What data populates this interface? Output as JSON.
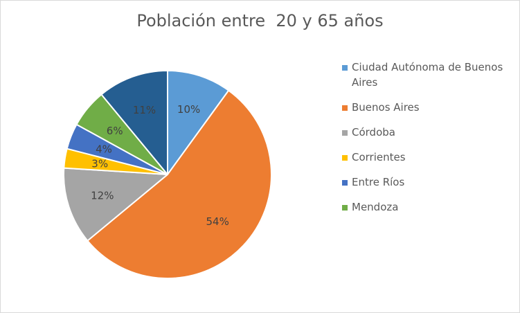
{
  "chart_data": {
    "type": "pie",
    "title": "Población entre  20 y 65 años",
    "legend_position": "right",
    "slices": [
      {
        "label": "Ciudad Autónoma de Buenos Aires",
        "value": 10,
        "value_label": "10%",
        "color": "#5b9bd5"
      },
      {
        "label": "Buenos Aires",
        "value": 54,
        "value_label": "54%",
        "color": "#ed7d31"
      },
      {
        "label": "Córdoba",
        "value": 12,
        "value_label": "12%",
        "color": "#a5a5a5"
      },
      {
        "label": "Corrientes",
        "value": 3,
        "value_label": "3%",
        "color": "#ffc000"
      },
      {
        "label": "Entre Ríos",
        "value": 4,
        "value_label": "4%",
        "color": "#4472c4"
      },
      {
        "label": "Mendoza",
        "value": 6,
        "value_label": "6%",
        "color": "#70ad47"
      },
      {
        "label": "",
        "value": 11,
        "value_label": "11%",
        "color": "#255e91"
      }
    ]
  }
}
